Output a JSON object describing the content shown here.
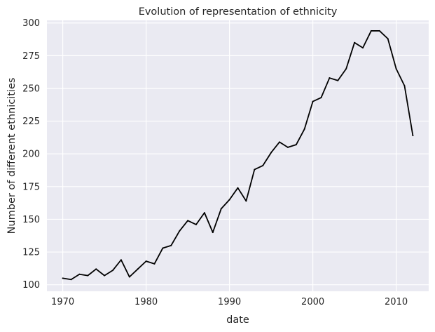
{
  "chart_data": {
    "type": "line",
    "title": "Evolution of representation of ethnicity",
    "xlabel": "date",
    "ylabel": "Number of different ethnicities",
    "xlim": [
      1968.1,
      2013.9
    ],
    "ylim": [
      95,
      302
    ],
    "xticks": [
      1970,
      1980,
      1990,
      2000,
      2010
    ],
    "yticks": [
      100,
      125,
      150,
      175,
      200,
      225,
      250,
      275,
      300
    ],
    "grid": true,
    "background_color": "#eaeaf2",
    "line_color": "#000000",
    "series": [
      {
        "x": [
          1970,
          1971,
          1972,
          1973,
          1974,
          1975,
          1976,
          1977,
          1978,
          1979,
          1980,
          1981,
          1982,
          1983,
          1984,
          1985,
          1986,
          1987,
          1988,
          1989,
          1990,
          1991,
          1992,
          1993,
          1994,
          1995,
          1996,
          1997,
          1998,
          1999,
          2000,
          2001,
          2002,
          2003,
          2004,
          2005,
          2006,
          2007,
          2008,
          2009,
          2010,
          2011,
          2012
        ],
        "values": [
          105,
          104,
          108,
          107,
          112,
          107,
          111,
          119,
          106,
          112,
          118,
          116,
          128,
          130,
          141,
          149,
          146,
          155,
          140,
          158,
          165,
          174,
          164,
          188,
          191,
          201,
          209,
          205,
          207,
          219,
          240,
          243,
          258,
          256,
          265,
          285,
          281,
          294,
          294,
          288,
          265,
          252,
          214
        ]
      }
    ]
  }
}
